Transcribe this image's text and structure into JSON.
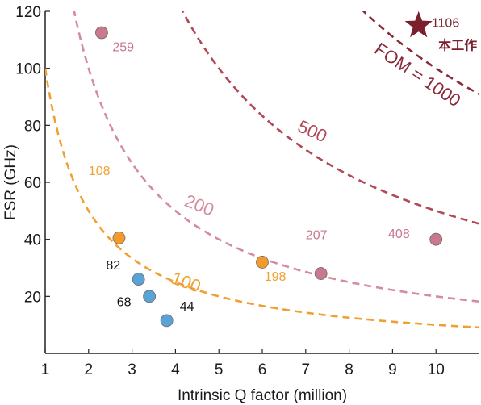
{
  "chart_data": {
    "type": "scatter",
    "title": "",
    "xlabel": "Intrinsic Q factor (million)",
    "ylabel": "FSR (GHz)",
    "xlim": [
      1,
      11
    ],
    "ylim": [
      0,
      120
    ],
    "xticks": [
      1,
      2,
      3,
      4,
      5,
      6,
      7,
      8,
      9,
      10
    ],
    "yticks": [
      20,
      40,
      60,
      80,
      100,
      120
    ],
    "grid": false,
    "colors": {
      "fom100": "#f0a030",
      "fom200": "#d48c9c",
      "fom500": "#b04858",
      "fom1000": "#8a2a3a",
      "blue": "#5ba3d6",
      "orange": "#f39a2a",
      "pink": "#c9788d",
      "star": "#7a1f2b"
    },
    "fom_curves": [
      {
        "fom": 100,
        "label": "100",
        "color": "#f0a030",
        "label_at": [
          4.2,
          23
        ],
        "label_rot": 20
      },
      {
        "fom": 200,
        "label": "200",
        "color": "#d48c9c",
        "label_at": [
          4.5,
          50
        ],
        "label_rot": 22
      },
      {
        "fom": 500,
        "label": "500",
        "color": "#b04858",
        "label_at": [
          7.1,
          76
        ],
        "label_rot": 24
      },
      {
        "fom": 1000,
        "label": "FOM = 1000",
        "color": "#8a2a3a",
        "label_at": [
          9.5,
          96
        ],
        "label_rot": 34
      }
    ],
    "points": [
      {
        "x": 3.15,
        "y": 26,
        "label": "",
        "color": "#5ba3d6"
      },
      {
        "x": 3.4,
        "y": 20,
        "label": "68",
        "color": "#5ba3d6",
        "label_color": "#111111",
        "label_at": [
          2.65,
          16.5
        ]
      },
      {
        "x": 3.8,
        "y": 11.5,
        "label": "44",
        "color": "#5ba3d6",
        "label_color": "#111111",
        "label_at": [
          4.1,
          15
        ]
      },
      {
        "x": 2.7,
        "y": 40.5,
        "label": "82",
        "color": "#f39a2a",
        "label_color": "#111111",
        "label_at": [
          2.4,
          29.5
        ]
      },
      {
        "x": 6.0,
        "y": 32,
        "label": "198",
        "color": "#f39a2a",
        "label_color": "#f0a030",
        "label_at": [
          6.05,
          25.5
        ]
      },
      {
        "x": 2.3,
        "y": 112.5,
        "label": "259",
        "color": "#c9788d",
        "label_color": "#c9788d",
        "label_at": [
          2.55,
          106
        ]
      },
      {
        "x": 7.35,
        "y": 28,
        "label": "207",
        "color": "#c9788d",
        "label_color": "#c9788d",
        "label_at": [
          7.0,
          40
        ]
      },
      {
        "x": 10.0,
        "y": 40,
        "label": "408",
        "color": "#c9788d",
        "label_color": "#c9788d",
        "label_at": [
          8.9,
          40.5
        ]
      }
    ],
    "star": {
      "x": 9.6,
      "y": 115,
      "label": "1106",
      "label_at": [
        9.9,
        114.5
      ],
      "note": "本工作",
      "note_at": [
        10.5,
        106.5
      ],
      "color": "#7a1f2b"
    },
    "annotations": [
      {
        "text": "108",
        "color": "#f0a030",
        "at": [
          2.0,
          62.5
        ]
      }
    ]
  }
}
